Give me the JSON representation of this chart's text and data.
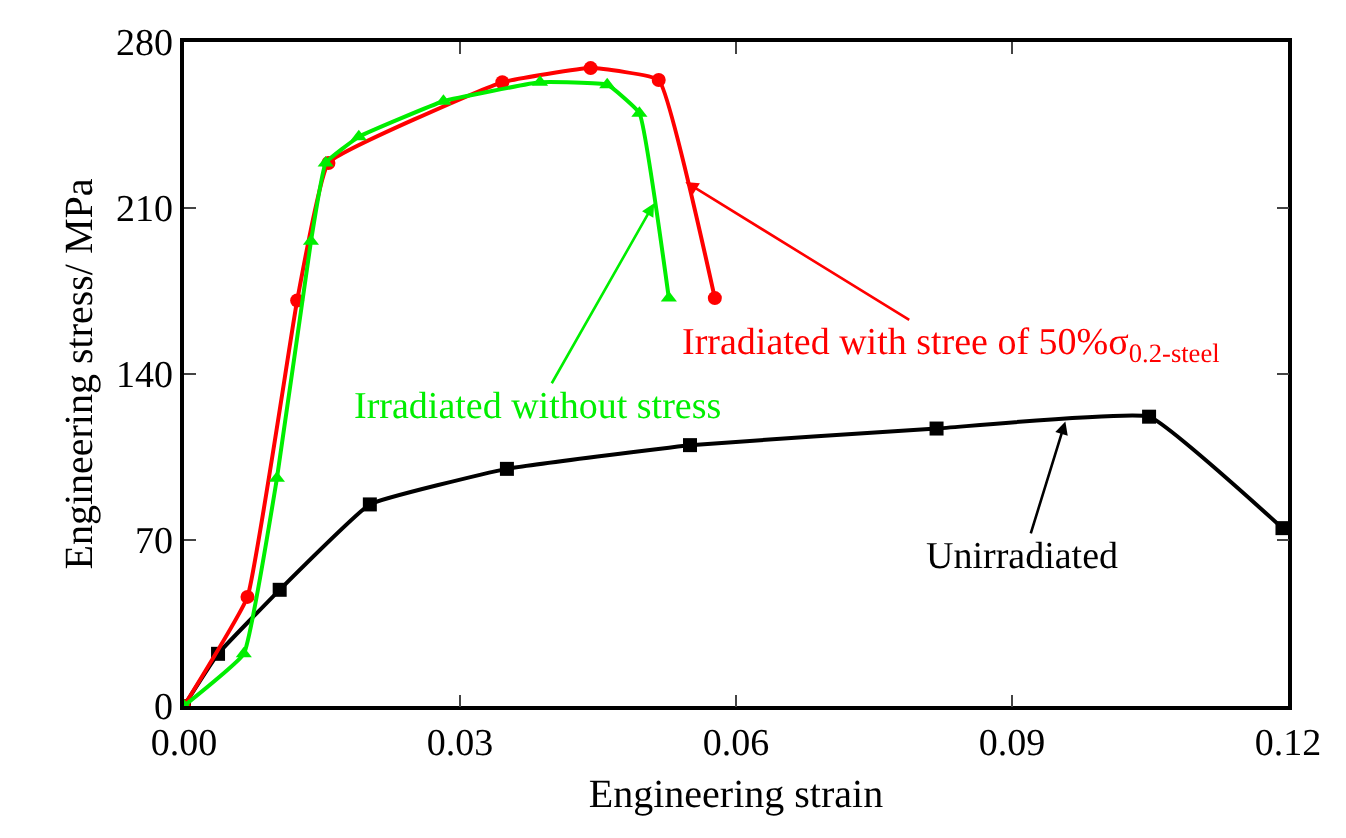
{
  "chart_data": {
    "type": "line",
    "xlabel": "Engineering strain",
    "ylabel": "Engineering stress/ MPa",
    "x": [
      0,
      0.0037,
      0.0104,
      0.0202,
      0.0351,
      0.055,
      0.0818,
      0.1049,
      0.1194
    ],
    "series": [
      {
        "color": "#000000",
        "marker": "square",
        "values": [
          0,
          22,
          49,
          85,
          100,
          110,
          117,
          122,
          75
        ]
      },
      {
        "color": "#ff0000",
        "marker": "circle",
        "x": [
          0,
          0.0069,
          0.0123,
          0.0157,
          0.0346,
          0.0442,
          0.0516,
          0.0577
        ],
        "values": [
          0,
          46,
          171,
          229,
          263,
          269,
          264,
          172
        ]
      },
      {
        "color": "#00ee00",
        "marker": "triangle",
        "x": [
          0,
          0.0065,
          0.0101,
          0.0138,
          0.0154,
          0.019,
          0.0282,
          0.0387,
          0.046,
          0.0495,
          0.0527
        ],
        "values": [
          0,
          22,
          96,
          196,
          229,
          240,
          255,
          263,
          262,
          250,
          172
        ]
      }
    ],
    "annotations": [
      {
        "text": "Unirradiated",
        "x": 0.0958,
        "y": 120
      },
      {
        "text": "Irradiated with stree of 50%σ$_{0.2-steel}$",
        "x": 0.0545,
        "y": 221
      },
      {
        "text": "Irradiated without stress",
        "x": 0.0511,
        "y": 212
      }
    ],
    "xlim": [
      0,
      0.12
    ],
    "ylim": [
      0,
      280
    ],
    "xticks": [
      {
        "value": 0,
        "label": "0.00"
      },
      0.03,
      0.06,
      0.09,
      {
        "value": 0.12,
        "label": "0.12"
      }
    ],
    "yticks": [
      0,
      70,
      140,
      210,
      280
    ]
  }
}
